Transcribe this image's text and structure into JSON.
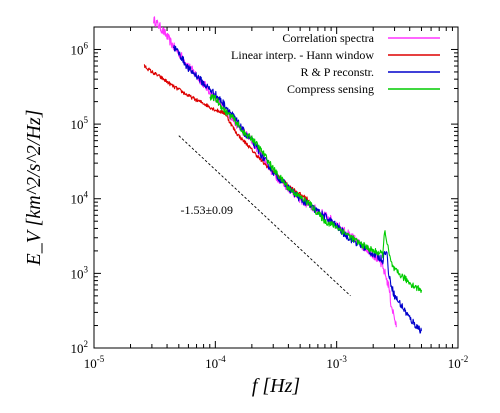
{
  "chart_data": {
    "type": "line",
    "xscale": "log",
    "yscale": "log",
    "xlim": [
      1e-05,
      0.01
    ],
    "ylim": [
      100.0,
      2000000.0
    ],
    "xlabel": "f [Hz]",
    "ylabel": "E_V [km^2/s^2/Hz]",
    "legend_position": "top-right",
    "x_ticks": [
      {
        "value": 1e-05,
        "base": "10",
        "exp": "-5"
      },
      {
        "value": 0.0001,
        "base": "10",
        "exp": "-4"
      },
      {
        "value": 0.001,
        "base": "10",
        "exp": "-3"
      },
      {
        "value": 0.01,
        "base": "10",
        "exp": "-2"
      }
    ],
    "y_ticks": [
      {
        "value": 100.0,
        "base": "10",
        "exp": "2"
      },
      {
        "value": 1000.0,
        "base": "10",
        "exp": "3"
      },
      {
        "value": 10000.0,
        "base": "10",
        "exp": "4"
      },
      {
        "value": 100000.0,
        "base": "10",
        "exp": "5"
      },
      {
        "value": 1000000.0,
        "base": "10",
        "exp": "6"
      }
    ],
    "series": [
      {
        "name": "Correlation spectra",
        "color": "#ff33ff",
        "noise": 0.12,
        "x": [
          3.1e-05,
          3.5e-05,
          4e-05,
          4.5e-05,
          5e-05,
          6e-05,
          7e-05,
          8e-05,
          0.0001,
          0.00012,
          0.00015,
          0.0002,
          0.00025,
          0.0003,
          0.0004,
          0.0005,
          0.0006,
          0.0008,
          0.001,
          0.0012,
          0.0015,
          0.0018,
          0.002,
          0.0023,
          0.0025,
          0.0027,
          0.0028,
          0.003,
          0.0031
        ],
        "y": [
          2500000,
          2000000,
          1500000,
          1100000,
          900000,
          600000,
          450000,
          350000,
          220000,
          160000,
          100000,
          60000,
          35000,
          22000,
          14000,
          10000,
          8000,
          6000,
          4500,
          3500,
          2600,
          2100,
          1800,
          1400,
          1000,
          650,
          400,
          250,
          190
        ]
      },
      {
        "name": "Linear interp. - Hann window",
        "color": "#dd0000",
        "noise": 0.05,
        "x": [
          2.6e-05,
          3e-05,
          3.5e-05,
          4e-05,
          4.5e-05,
          5e-05,
          6e-05,
          7e-05,
          8e-05,
          9e-05,
          0.0001,
          0.00012,
          0.00014,
          0.00015,
          0.00017,
          0.00018,
          0.0002,
          0.00022,
          0.00025,
          0.0003,
          0.0004,
          0.0005,
          0.0006
        ],
        "y": [
          600000,
          500000,
          430000,
          370000,
          320000,
          290000,
          240000,
          210000,
          190000,
          170000,
          155000,
          140000,
          90000,
          75000,
          60000,
          55000,
          45000,
          38000,
          30000,
          23000,
          15000,
          11500,
          9500
        ]
      },
      {
        "name": "R & P reconstr.",
        "color": "#0000cc",
        "noise": 0.1,
        "x": [
          4.5e-05,
          5e-05,
          6e-05,
          7e-05,
          8e-05,
          0.0001,
          0.00012,
          0.00015,
          0.00018,
          0.0002,
          0.00025,
          0.0003,
          0.0004,
          0.0005,
          0.0006,
          0.0008,
          0.001,
          0.0012,
          0.0015,
          0.0018,
          0.002,
          0.0023,
          0.0024,
          0.0025,
          0.0026,
          0.0027,
          0.003,
          0.0035,
          0.004,
          0.0045,
          0.005
        ],
        "y": [
          1100000,
          900000,
          550000,
          450000,
          350000,
          250000,
          180000,
          110000,
          70000,
          60000,
          35000,
          23000,
          14000,
          10000,
          8000,
          5800,
          4300,
          3200,
          2500,
          2100,
          1800,
          1600,
          1500,
          2000,
          1800,
          900,
          500,
          350,
          250,
          200,
          170
        ]
      },
      {
        "name": "Compress sensing",
        "color": "#00cc00",
        "noise": 0.09,
        "x": [
          9e-05,
          0.0001,
          0.00012,
          0.00014,
          0.00016,
          0.00018,
          0.0002,
          0.00025,
          0.0003,
          0.0004,
          0.0005,
          0.0006,
          0.0008,
          0.001,
          0.0012,
          0.0015,
          0.0018,
          0.002,
          0.0022,
          0.0024,
          0.0025,
          0.0026,
          0.0028,
          0.003,
          0.0035,
          0.004,
          0.0045,
          0.005
        ],
        "y": [
          230000,
          220000,
          150000,
          120000,
          90000,
          70000,
          65000,
          40000,
          25000,
          14000,
          10500,
          8500,
          5000,
          4200,
          3400,
          2600,
          2200,
          2000,
          1900,
          1800,
          4000,
          2500,
          1400,
          1100,
          900,
          750,
          650,
          600
        ]
      }
    ],
    "fit_line": {
      "x": [
        5e-05,
        0.0013
      ],
      "y": [
        70000,
        500
      ],
      "color": "#000000",
      "style": "dashed"
    },
    "annotation": {
      "text": "-1.53±0.09",
      "x": 8.5e-05,
      "y": 6200
    }
  }
}
